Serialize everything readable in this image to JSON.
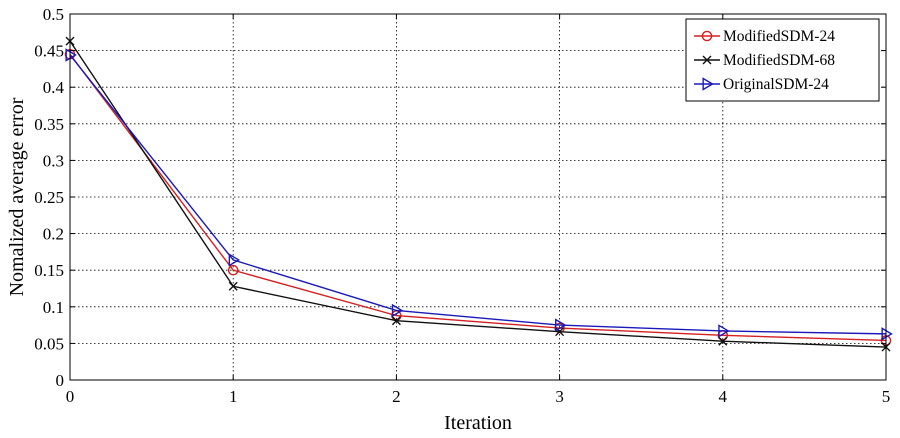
{
  "chart_data": {
    "type": "line",
    "title": "",
    "xlabel": "Iteration",
    "ylabel": "Nomalized average error",
    "xlim": [
      0,
      5
    ],
    "ylim": [
      0,
      0.5
    ],
    "xticks": [
      0,
      1,
      2,
      3,
      4,
      5
    ],
    "xtick_labels": [
      "0",
      "1",
      "2",
      "3",
      "4",
      "5"
    ],
    "yticks": [
      0,
      0.05,
      0.1,
      0.15,
      0.2,
      0.25,
      0.3,
      0.35,
      0.4,
      0.45,
      0.5
    ],
    "ytick_labels": [
      "0",
      "0.05",
      "0.1",
      "0.15",
      "0.2",
      "0.25",
      "0.3",
      "0.35",
      "0.4",
      "0.45",
      "0.5"
    ],
    "grid": true,
    "legend_position": "top-right",
    "x": [
      0,
      1,
      2,
      3,
      4,
      5
    ],
    "series": [
      {
        "name": "ModifiedSDM-24",
        "values": [
          0.445,
          0.15,
          0.088,
          0.071,
          0.061,
          0.054
        ],
        "color": "#d42020",
        "marker": "circle"
      },
      {
        "name": "ModifiedSDM-68",
        "values": [
          0.463,
          0.128,
          0.081,
          0.066,
          0.053,
          0.045
        ],
        "color": "#111111",
        "marker": "x"
      },
      {
        "name": "OriginalSDM-24",
        "values": [
          0.444,
          0.164,
          0.095,
          0.075,
          0.067,
          0.063
        ],
        "color": "#1a1ab8",
        "marker": "triangle-right"
      }
    ]
  }
}
